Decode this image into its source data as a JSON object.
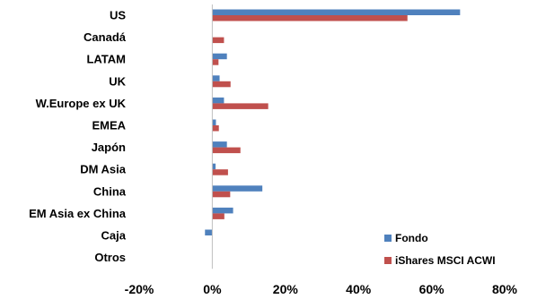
{
  "chart_data": {
    "type": "bar",
    "orientation": "horizontal",
    "categories": [
      "US",
      "Canadá",
      "LATAM",
      "UK",
      "W.Europe ex UK",
      "EMEA",
      "Japón",
      "DM Asia",
      "China",
      "EM Asia ex China",
      "Caja",
      "Otros"
    ],
    "series": [
      {
        "name": "Fondo",
        "color": "#4F81BD",
        "values": [
          67.8,
          0,
          4.0,
          2.0,
          3.2,
          1.0,
          4.0,
          0.9,
          13.7,
          5.7,
          -2.0,
          0
        ]
      },
      {
        "name": "iShares MSCI ACWI",
        "color": "#C0504D",
        "values": [
          53.4,
          3.2,
          1.7,
          5.0,
          15.3,
          1.8,
          7.7,
          4.3,
          4.9,
          3.3,
          0,
          0
        ]
      }
    ],
    "xlim": [
      -20,
      80
    ],
    "xticks": [
      "-20%",
      "0%",
      "20%",
      "40%",
      "60%",
      "80%"
    ],
    "xtick_values": [
      -20,
      0,
      20,
      40,
      60,
      80
    ],
    "legend_position": "bottom-right",
    "grid": false
  }
}
